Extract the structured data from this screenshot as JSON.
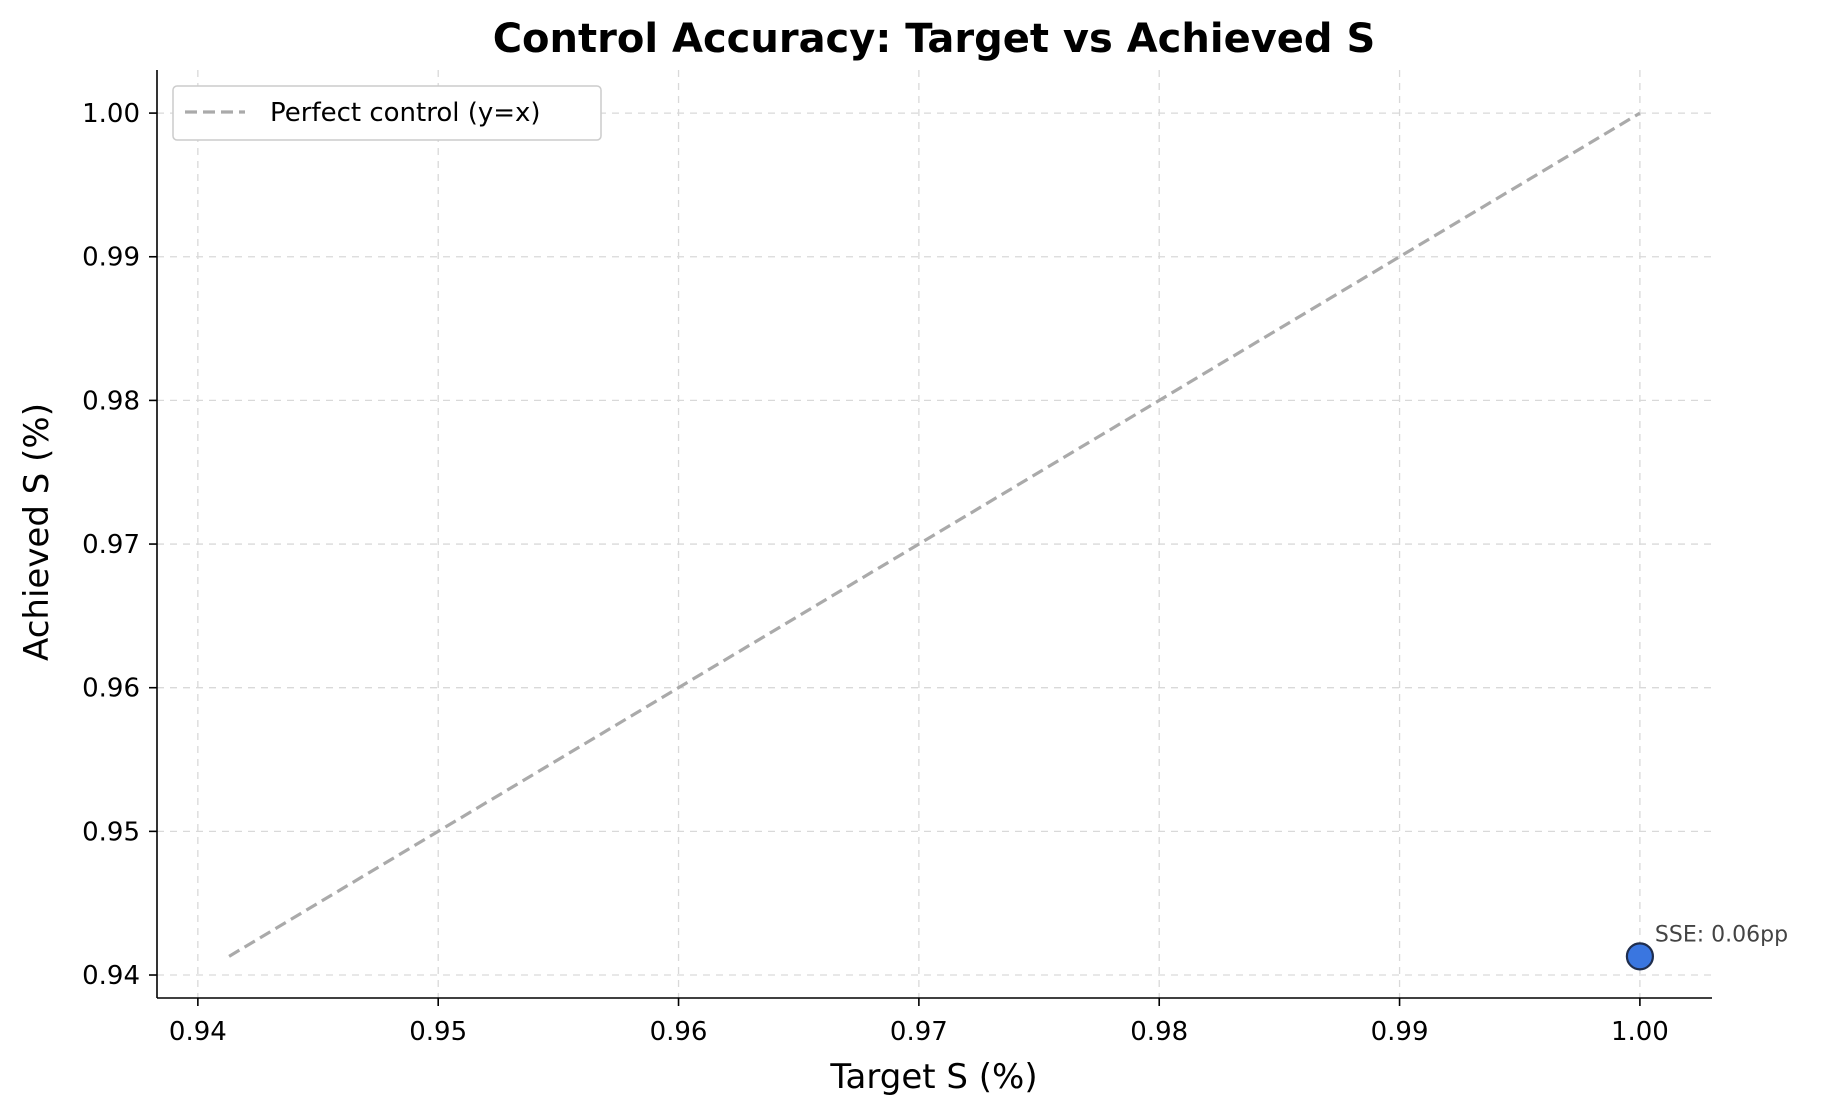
{
  "chart_data": {
    "type": "scatter",
    "title": "Control Accuracy: Target vs Achieved S",
    "xlabel": "Target S (%)",
    "ylabel": "Achieved S (%)",
    "xlim": [
      0.9383,
      1.003
    ],
    "ylim": [
      0.9384,
      1.003
    ],
    "xticks": [
      0.94,
      0.95,
      0.96,
      0.97,
      0.98,
      0.99,
      1.0
    ],
    "yticks": [
      0.94,
      0.95,
      0.96,
      0.97,
      0.98,
      0.99,
      1.0
    ],
    "xtick_labels": [
      "0.94",
      "0.95",
      "0.96",
      "0.97",
      "0.98",
      "0.99",
      "1.00"
    ],
    "ytick_labels": [
      "0.94",
      "0.95",
      "0.96",
      "0.97",
      "0.98",
      "0.99",
      "1.00"
    ],
    "grid": true,
    "legend_position": "top-left",
    "reference_line": {
      "name": "Perfect control (y=x)",
      "x": [
        0.9413,
        1.0
      ],
      "y": [
        0.9413,
        1.0
      ],
      "color": "#aaaaaa",
      "style": "dashed"
    },
    "points": [
      {
        "x": 1.0,
        "y": 0.9413,
        "label": "SSE: 0.06pp",
        "color": "#3a76e0",
        "edge_color": "#1f2d4d"
      }
    ]
  }
}
